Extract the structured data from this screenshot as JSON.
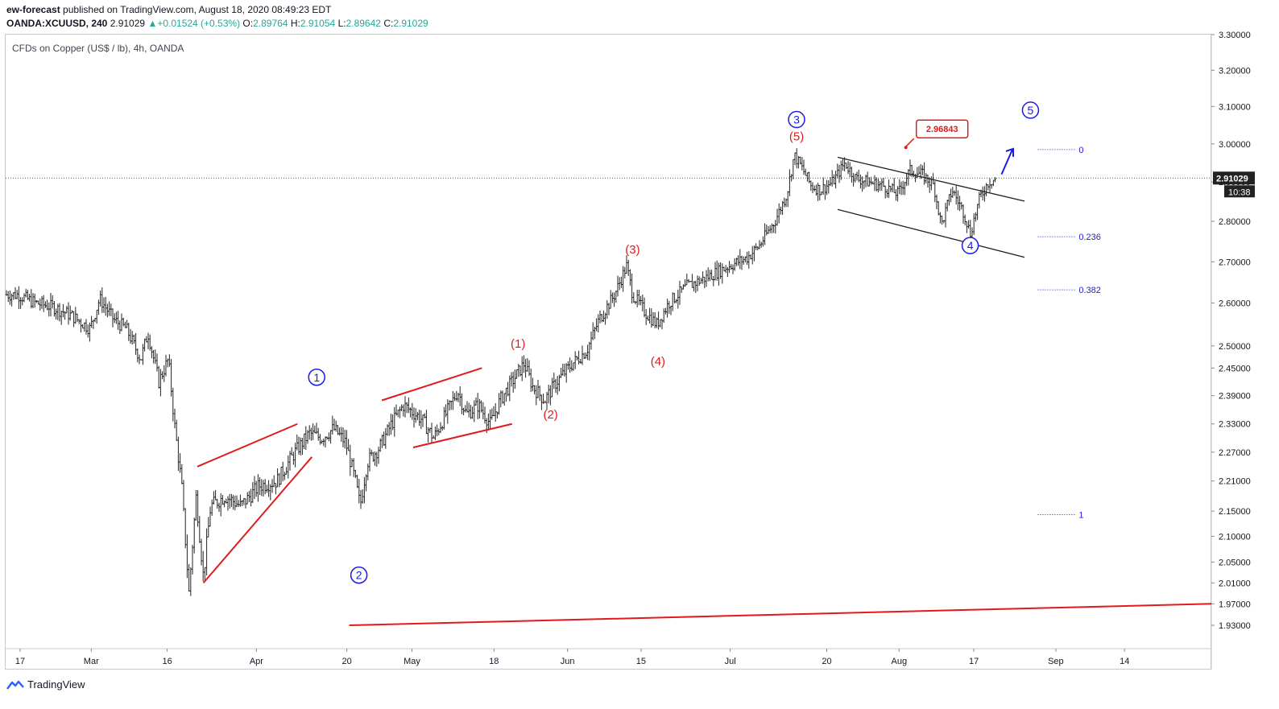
{
  "header": {
    "author": "ew-forecast",
    "published_text": "published on TradingView.com, August 18, 2020 08:49:23 EDT",
    "symbol": "OANDA:XCUUSD, 240",
    "last": "2.91029",
    "change": "+0.01524 (+0.53%)",
    "open_label": "O:",
    "open": "2.89764",
    "high_label": "H:",
    "high": "2.91054",
    "low_label": "L:",
    "low": "2.89642",
    "close_label": "C:",
    "close": "2.91029"
  },
  "footer": {
    "brand": "TradingView"
  },
  "chart_data": {
    "type": "candlestick",
    "title": "CFDs on Copper (US$ / lb), 4h, OANDA",
    "x_tick_labels": [
      "17",
      "Mar",
      "16",
      "Apr",
      "20",
      "May",
      "18",
      "Jun",
      "15",
      "Jul",
      "20",
      "Aug",
      "17",
      "Sep",
      "14"
    ],
    "y_tick_labels": [
      "3.30000",
      "3.20000",
      "3.10000",
      "3.00000",
      "2.90000",
      "2.80000",
      "2.70000",
      "2.60000",
      "2.50000",
      "2.45000",
      "2.39000",
      "2.33000",
      "2.27000",
      "2.21000",
      "2.15000",
      "2.10000",
      "2.05000",
      "2.01000",
      "1.97000",
      "1.93000"
    ],
    "price_scale": [
      {
        "price": 3.3,
        "v": 0
      },
      {
        "price": 3.2,
        "v": 0.058
      },
      {
        "price": 3.1,
        "v": 0.117
      },
      {
        "price": 3.0,
        "v": 0.178
      },
      {
        "price": 2.9,
        "v": 0.24
      },
      {
        "price": 2.8,
        "v": 0.304
      },
      {
        "price": 2.7,
        "v": 0.37
      },
      {
        "price": 2.6,
        "v": 0.437
      },
      {
        "price": 2.5,
        "v": 0.507
      },
      {
        "price": 2.45,
        "v": 0.543
      },
      {
        "price": 2.39,
        "v": 0.588
      },
      {
        "price": 2.33,
        "v": 0.634
      },
      {
        "price": 2.27,
        "v": 0.68
      },
      {
        "price": 2.21,
        "v": 0.727
      },
      {
        "price": 2.15,
        "v": 0.776
      },
      {
        "price": 2.1,
        "v": 0.817
      },
      {
        "price": 2.05,
        "v": 0.859
      },
      {
        "price": 2.01,
        "v": 0.893
      },
      {
        "price": 1.97,
        "v": 0.927
      },
      {
        "price": 1.93,
        "v": 0.962
      }
    ],
    "last_price_label": "2.91029",
    "countdown_label": "10:38",
    "last_price": 2.91029,
    "price_path": [
      [
        0,
        2.62
      ],
      [
        0.01,
        2.62
      ],
      [
        0.025,
        2.6
      ],
      [
        0.04,
        2.59
      ],
      [
        0.055,
        2.57
      ],
      [
        0.07,
        2.54
      ],
      [
        0.078,
        2.61
      ],
      [
        0.09,
        2.56
      ],
      [
        0.1,
        2.54
      ],
      [
        0.112,
        2.47
      ],
      [
        0.118,
        2.53
      ],
      [
        0.127,
        2.42
      ],
      [
        0.135,
        2.47
      ],
      [
        0.14,
        2.33
      ],
      [
        0.146,
        2.2
      ],
      [
        0.152,
        1.99
      ],
      [
        0.158,
        2.18
      ],
      [
        0.164,
        2.02
      ],
      [
        0.17,
        2.16
      ],
      [
        0.182,
        2.18
      ],
      [
        0.195,
        2.16
      ],
      [
        0.21,
        2.2
      ],
      [
        0.225,
        2.21
      ],
      [
        0.24,
        2.27
      ],
      [
        0.252,
        2.31
      ],
      [
        0.262,
        2.3
      ],
      [
        0.272,
        2.32
      ],
      [
        0.282,
        2.29
      ],
      [
        0.29,
        2.21
      ],
      [
        0.294,
        2.16
      ],
      [
        0.3,
        2.25
      ],
      [
        0.31,
        2.28
      ],
      [
        0.32,
        2.33
      ],
      [
        0.33,
        2.37
      ],
      [
        0.345,
        2.34
      ],
      [
        0.355,
        2.3
      ],
      [
        0.365,
        2.35
      ],
      [
        0.375,
        2.4
      ],
      [
        0.382,
        2.35
      ],
      [
        0.392,
        2.37
      ],
      [
        0.402,
        2.33
      ],
      [
        0.41,
        2.38
      ],
      [
        0.42,
        2.42
      ],
      [
        0.43,
        2.46
      ],
      [
        0.437,
        2.41
      ],
      [
        0.447,
        2.38
      ],
      [
        0.457,
        2.42
      ],
      [
        0.47,
        2.46
      ],
      [
        0.482,
        2.49
      ],
      [
        0.492,
        2.56
      ],
      [
        0.505,
        2.62
      ],
      [
        0.515,
        2.69
      ],
      [
        0.52,
        2.62
      ],
      [
        0.53,
        2.58
      ],
      [
        0.54,
        2.55
      ],
      [
        0.55,
        2.6
      ],
      [
        0.565,
        2.64
      ],
      [
        0.58,
        2.66
      ],
      [
        0.6,
        2.69
      ],
      [
        0.615,
        2.71
      ],
      [
        0.625,
        2.74
      ],
      [
        0.638,
        2.8
      ],
      [
        0.648,
        2.87
      ],
      [
        0.654,
        2.97
      ],
      [
        0.66,
        2.94
      ],
      [
        0.668,
        2.89
      ],
      [
        0.676,
        2.88
      ],
      [
        0.686,
        2.9
      ],
      [
        0.696,
        2.95
      ],
      [
        0.705,
        2.91
      ],
      [
        0.715,
        2.9
      ],
      [
        0.728,
        2.89
      ],
      [
        0.74,
        2.87
      ],
      [
        0.75,
        2.93
      ],
      [
        0.76,
        2.92
      ],
      [
        0.77,
        2.89
      ],
      [
        0.776,
        2.79
      ],
      [
        0.785,
        2.88
      ],
      [
        0.795,
        2.82
      ],
      [
        0.8,
        2.77
      ],
      [
        0.808,
        2.86
      ],
      [
        0.815,
        2.9
      ],
      [
        0.822,
        2.91
      ]
    ],
    "wave_labels": [
      {
        "text": "1",
        "circled": true,
        "color": "#1a1ae6",
        "x": 0.258,
        "p": 2.43
      },
      {
        "text": "2",
        "circled": true,
        "color": "#1a1ae6",
        "x": 0.293,
        "p": 2.025
      },
      {
        "text": "(1)",
        "circled": false,
        "color": "#e01b1b",
        "x": 0.425,
        "p": 2.505
      },
      {
        "text": "(2)",
        "circled": false,
        "color": "#e01b1b",
        "x": 0.452,
        "p": 2.35
      },
      {
        "text": "(3)",
        "circled": false,
        "color": "#e01b1b",
        "x": 0.52,
        "p": 2.73
      },
      {
        "text": "(4)",
        "circled": false,
        "color": "#e01b1b",
        "x": 0.541,
        "p": 2.465
      },
      {
        "text": "(5)",
        "circled": false,
        "color": "#e01b1b",
        "x": 0.656,
        "p": 3.02
      },
      {
        "text": "3",
        "circled": true,
        "color": "#1a1ae6",
        "x": 0.656,
        "p": 3.065
      },
      {
        "text": "4",
        "circled": true,
        "color": "#1a1ae6",
        "x": 0.8,
        "p": 2.74
      },
      {
        "text": "5",
        "circled": true,
        "color": "#1a1ae6",
        "x": 0.85,
        "p": 3.09
      }
    ],
    "callout": {
      "text": "2.96843",
      "color": "#e01b1b"
    },
    "fib_levels": [
      {
        "label": "0",
        "p": 2.985
      },
      {
        "label": "0.236",
        "p": 2.762
      },
      {
        "label": "0.382",
        "p": 2.632
      },
      {
        "label": "1",
        "p": 2.143
      }
    ]
  }
}
